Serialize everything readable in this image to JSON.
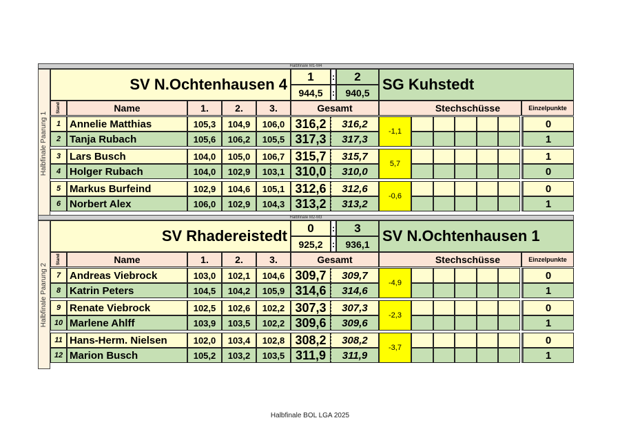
{
  "footer": "Halbfinale BOL LGA 2025",
  "headers": {
    "stand": "Stand",
    "name": "Name",
    "r1": "1.",
    "r2": "2.",
    "r3": "3.",
    "gesamt": "Gesamt",
    "stech": "Stechschüsse",
    "einzel": "Einzelpunkte"
  },
  "colors": {
    "yellow_row": "#fffdd0",
    "green_row": "#c6e0b4",
    "header": "#fce4d6",
    "diff": "#ffff00"
  },
  "blocks": [
    {
      "bar": "Halbfinale  M1-M4",
      "side_label": "Halbfinale Paarung 1",
      "team1": "SV N.Ochtenhausen 4",
      "team2": "SG Kuhstedt",
      "points1": "1",
      "points2": "2",
      "total1": "944,5",
      "total2": "940,5",
      "colon": ":",
      "pairs": [
        {
          "diff": "-1,1",
          "rows": [
            {
              "stand": "1",
              "name": "Annelie Matthias",
              "r1": "105,3",
              "r2": "104,9",
              "r3": "106,0",
              "gesamt": "316,2",
              "gesamt2": "316,2",
              "einzel": "0"
            },
            {
              "stand": "2",
              "name": "Tanja Rubach",
              "r1": "105,6",
              "r2": "106,2",
              "r3": "105,5",
              "gesamt": "317,3",
              "gesamt2": "317,3",
              "einzel": "1"
            }
          ]
        },
        {
          "diff": "5,7",
          "rows": [
            {
              "stand": "3",
              "name": "Lars Busch",
              "r1": "104,0",
              "r2": "105,0",
              "r3": "106,7",
              "gesamt": "315,7",
              "gesamt2": "315,7",
              "einzel": "1"
            },
            {
              "stand": "4",
              "name": "Holger Rubach",
              "r1": "104,0",
              "r2": "102,9",
              "r3": "103,1",
              "gesamt": "310,0",
              "gesamt2": "310,0",
              "einzel": "0"
            }
          ]
        },
        {
          "diff": "-0,6",
          "rows": [
            {
              "stand": "5",
              "name": "Markus Burfeind",
              "r1": "102,9",
              "r2": "104,6",
              "r3": "105,1",
              "gesamt": "312,6",
              "gesamt2": "312,6",
              "einzel": "0"
            },
            {
              "stand": "6",
              "name": "Norbert Alex",
              "r1": "106,0",
              "r2": "102,9",
              "r3": "104,3",
              "gesamt": "313,2",
              "gesamt2": "313,2",
              "einzel": "1"
            }
          ]
        }
      ]
    },
    {
      "bar": "Halbfinale  M2-M3",
      "side_label": "Halbfinale Paarung 2",
      "team1": "SV Rhadereistedt",
      "team2": "SV N.Ochtenhausen 1",
      "points1": "0",
      "points2": "3",
      "total1": "925,2",
      "total2": "936,1",
      "colon": ":",
      "pairs": [
        {
          "diff": "-4,9",
          "rows": [
            {
              "stand": "7",
              "name": "Andreas Viebrock",
              "r1": "103,0",
              "r2": "102,1",
              "r3": "104,6",
              "gesamt": "309,7",
              "gesamt2": "309,7",
              "einzel": "0"
            },
            {
              "stand": "8",
              "name": "Katrin Peters",
              "r1": "104,5",
              "r2": "104,2",
              "r3": "105,9",
              "gesamt": "314,6",
              "gesamt2": "314,6",
              "einzel": "1"
            }
          ]
        },
        {
          "diff": "-2,3",
          "rows": [
            {
              "stand": "9",
              "name": "Renate Viebrock",
              "r1": "102,5",
              "r2": "102,6",
              "r3": "102,2",
              "gesamt": "307,3",
              "gesamt2": "307,3",
              "einzel": "0"
            },
            {
              "stand": "10",
              "name": "Marlene Ahlff",
              "r1": "103,9",
              "r2": "103,5",
              "r3": "102,2",
              "gesamt": "309,6",
              "gesamt2": "309,6",
              "einzel": "1"
            }
          ]
        },
        {
          "diff": "-3,7",
          "rows": [
            {
              "stand": "11",
              "name": "Hans-Herm. Nielsen",
              "r1": "102,0",
              "r2": "103,4",
              "r3": "102,8",
              "gesamt": "308,2",
              "gesamt2": "308,2",
              "einzel": "0"
            },
            {
              "stand": "12",
              "name": "Marion Busch",
              "r1": "105,2",
              "r2": "103,2",
              "r3": "103,5",
              "gesamt": "311,9",
              "gesamt2": "311,9",
              "einzel": "1"
            }
          ]
        }
      ]
    }
  ]
}
